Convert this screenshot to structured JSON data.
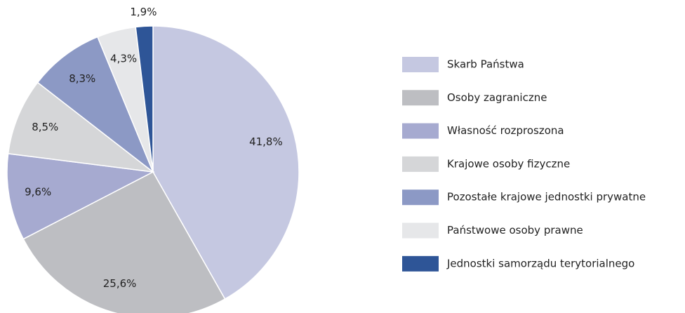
{
  "chart_data": {
    "type": "pie",
    "categories": [
      "Skarb Państwa",
      "Osoby zagraniczne",
      "Własność rozproszona",
      "Krajowe osoby fizyczne",
      "Pozostałe krajowe jednostki prywatne",
      "Państwowe osoby prawne",
      "Jednostki samorządu terytorialnego"
    ],
    "values": [
      41.8,
      25.6,
      9.6,
      8.5,
      8.3,
      4.3,
      1.9
    ],
    "value_labels": [
      "41,8%",
      "25,6%",
      "9,6%",
      "8,5%",
      "8,3%",
      "4,3%",
      "1,9%"
    ],
    "colors": [
      "#c5c8e1",
      "#bdbec2",
      "#a6aad0",
      "#d5d6d8",
      "#8c99c5",
      "#e6e7e9",
      "#2e5597"
    ],
    "legend": "right"
  }
}
